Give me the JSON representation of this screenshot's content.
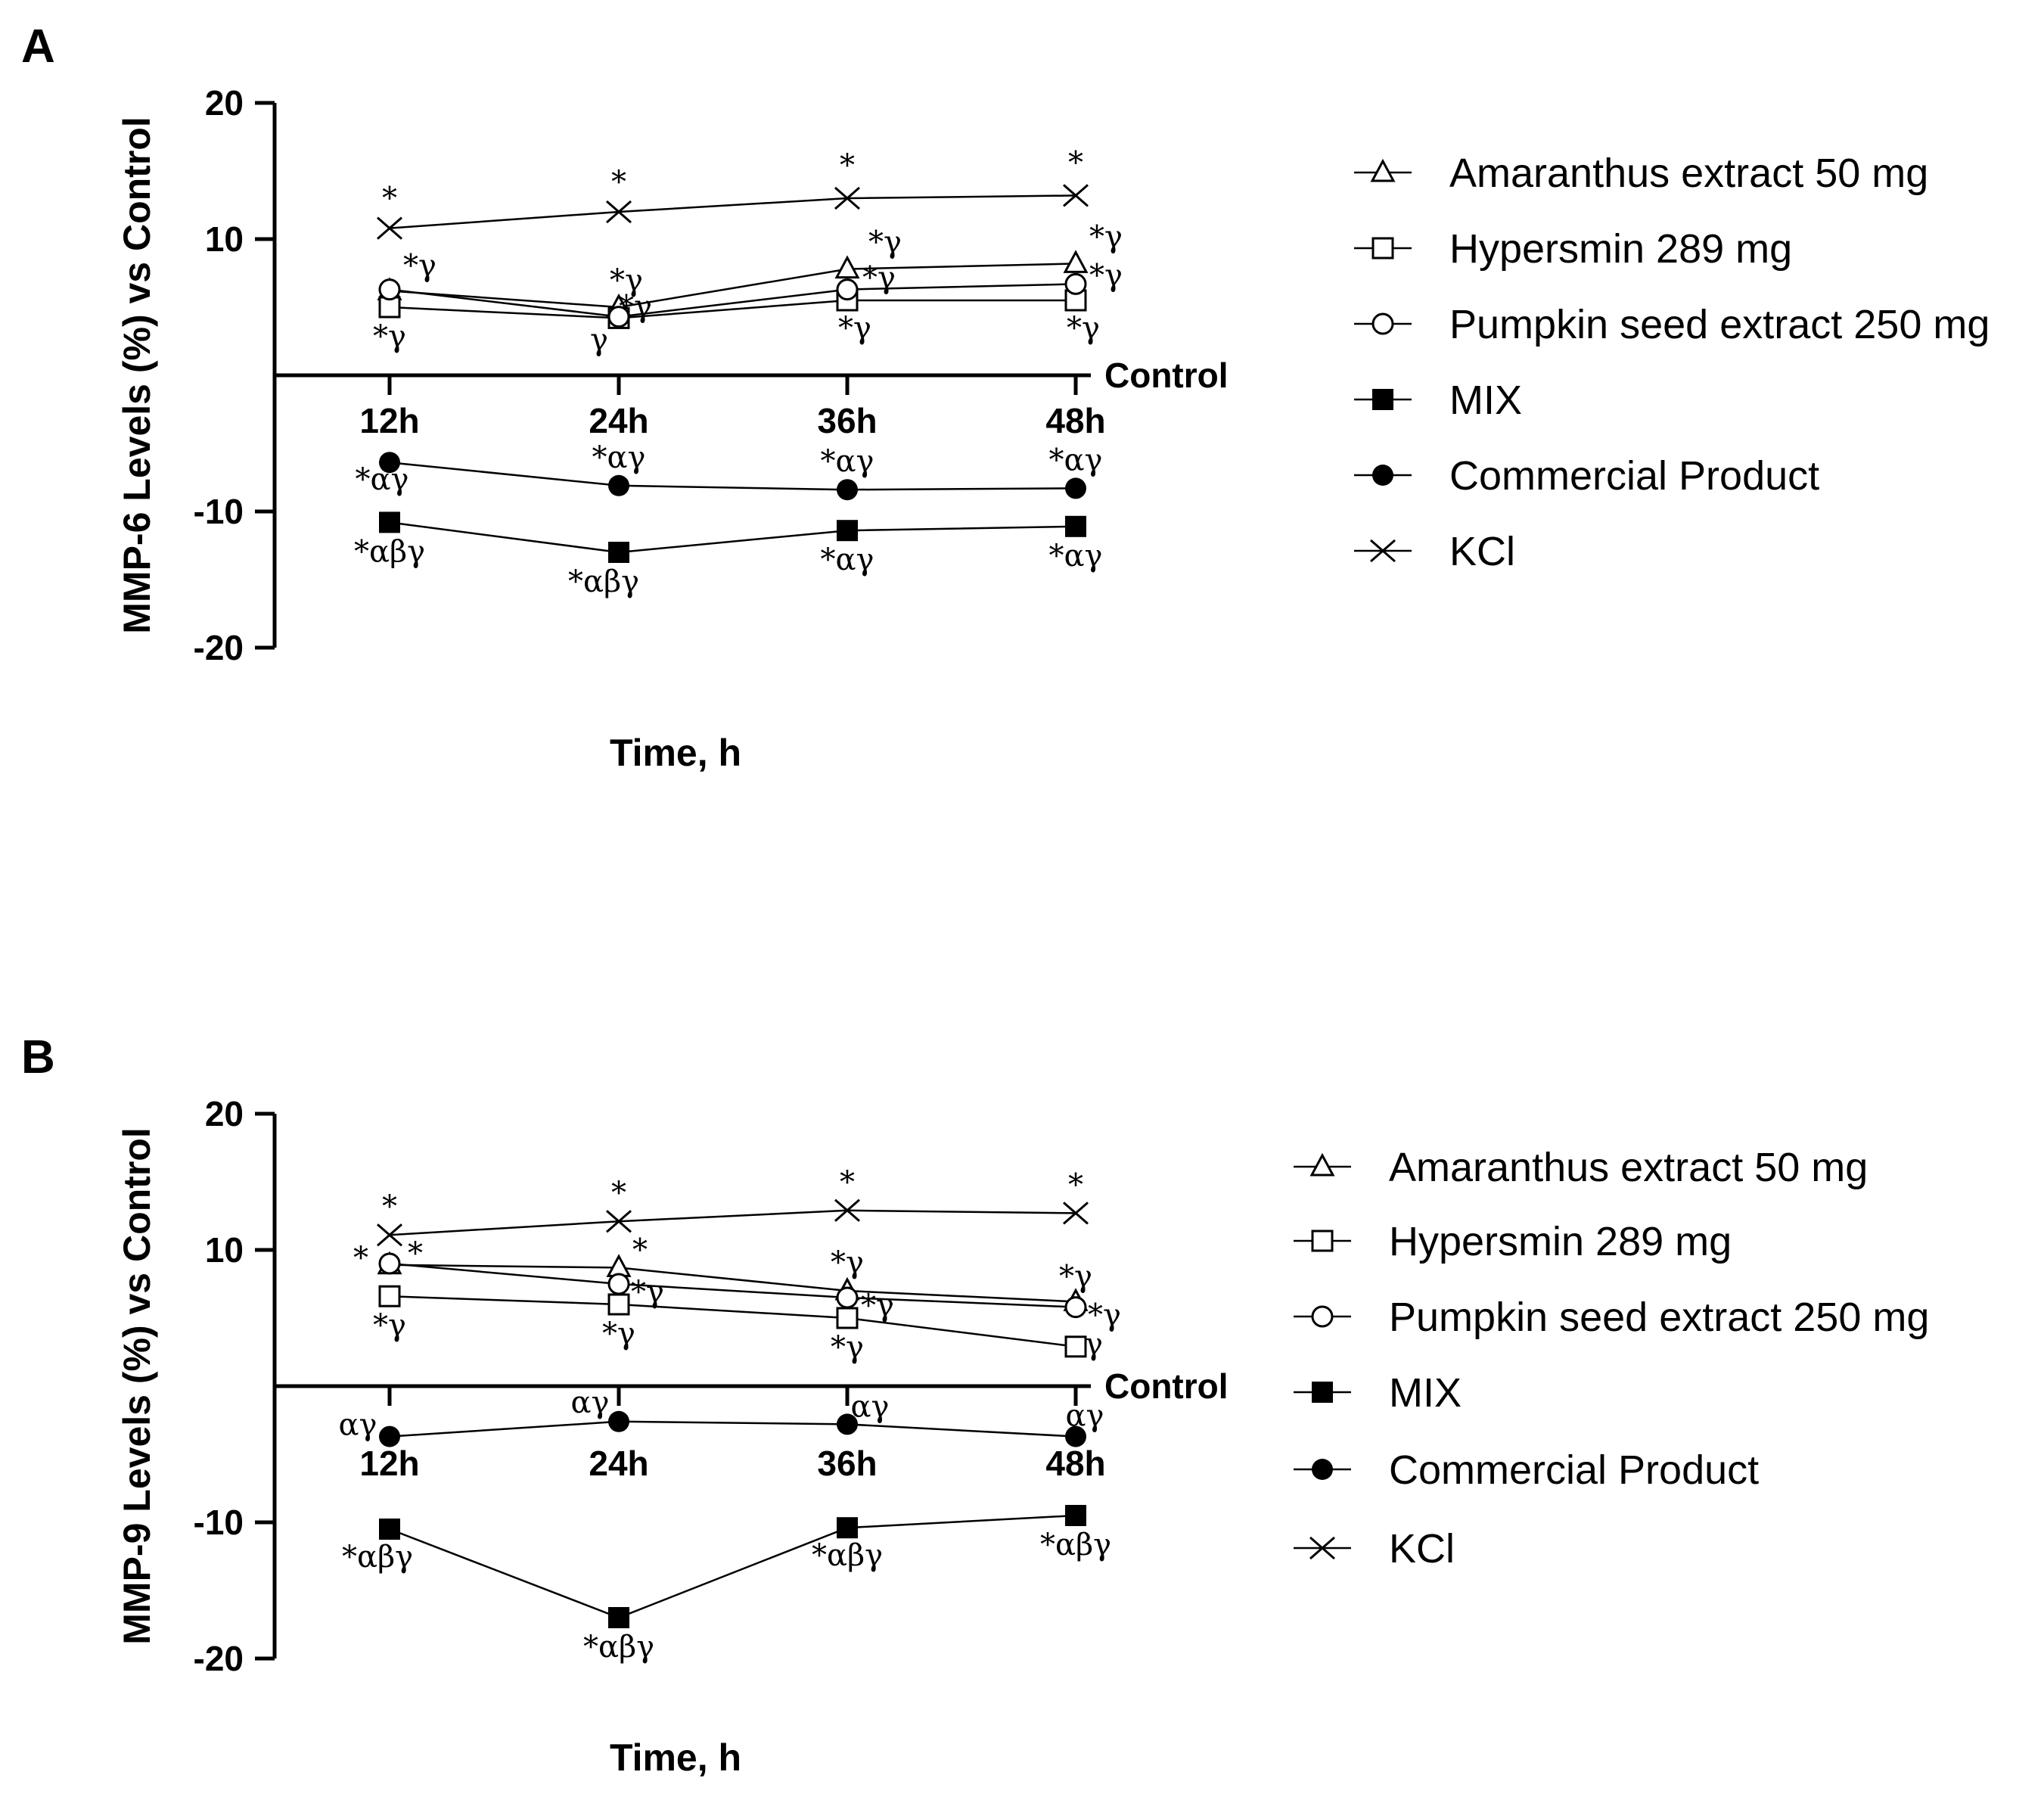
{
  "chart_data": [
    {
      "panel": "A",
      "type": "line",
      "ylabel": "MMP-6 Levels (%) vs Control",
      "xlabel": "Time, h",
      "baseline_label": "Control",
      "categories": [
        "12h",
        "24h",
        "36h",
        "48h"
      ],
      "ylim": [
        -20,
        20
      ],
      "yticks": [
        20,
        10,
        -10,
        -20
      ],
      "series": [
        {
          "name": "Amaranthus extract 50 mg",
          "marker": "triangle-open",
          "values": [
            6.2,
            5.0,
            7.8,
            8.2
          ],
          "labels": [
            "",
            "*γ",
            "*γ",
            "*γ"
          ]
        },
        {
          "name": "Hypersmin 289 mg",
          "marker": "square-open",
          "values": [
            5.0,
            4.2,
            5.5,
            5.5
          ],
          "labels": [
            "*γ",
            "γ",
            "*γ",
            "*γ"
          ]
        },
        {
          "name": "Pumpkin seed extract 250 mg",
          "marker": "circle-open",
          "values": [
            6.3,
            4.3,
            6.3,
            6.7
          ],
          "labels": [
            "*γ",
            "*γ",
            "*γ",
            "*γ"
          ]
        },
        {
          "name": "MIX",
          "marker": "square-filled",
          "values": [
            -10.8,
            -13.0,
            -11.4,
            -11.1
          ],
          "labels": [
            "*αβγ",
            "*αβγ",
            "*αγ",
            "*αγ"
          ]
        },
        {
          "name": "Commercial Product",
          "marker": "circle-filled",
          "values": [
            -6.4,
            -8.1,
            -8.4,
            -8.3
          ],
          "labels": [
            "*αγ",
            "*αγ",
            "*αγ",
            "*αγ"
          ]
        },
        {
          "name": "KCl",
          "marker": "x",
          "values": [
            10.8,
            12.0,
            13.0,
            13.2
          ],
          "labels": [
            "*",
            "*",
            "*",
            "*"
          ]
        }
      ]
    },
    {
      "panel": "B",
      "type": "line",
      "ylabel": "MMP-9 Levels (%) vs Control",
      "xlabel": "Time, h",
      "baseline_label": "Control",
      "categories": [
        "12h",
        "24h",
        "36h",
        "48h"
      ],
      "ylim": [
        -20,
        20
      ],
      "yticks": [
        20,
        10,
        -10,
        -20
      ],
      "series": [
        {
          "name": "Amaranthus extract 50 mg",
          "marker": "triangle-open",
          "values": [
            8.9,
            8.7,
            7.0,
            6.2
          ],
          "labels": [
            "*",
            "*",
            "*γ",
            "*γ"
          ]
        },
        {
          "name": "Hypersmin 289 mg",
          "marker": "square-open",
          "values": [
            6.6,
            6.0,
            5.0,
            2.9
          ],
          "labels": [
            "*γ",
            "*γ",
            "*γ",
            "γ"
          ]
        },
        {
          "name": "Pumpkin seed extract 250 mg",
          "marker": "circle-open",
          "values": [
            9.0,
            7.5,
            6.5,
            5.8
          ],
          "labels": [
            "*",
            "*γ",
            "*γ",
            "*γ"
          ]
        },
        {
          "name": "MIX",
          "marker": "square-filled",
          "values": [
            -10.5,
            -17.0,
            -10.4,
            -9.5
          ],
          "labels": [
            "*αβγ",
            "*αβγ",
            "*αβγ",
            "*αβγ"
          ]
        },
        {
          "name": "Commercial Product",
          "marker": "circle-filled",
          "values": [
            -3.7,
            -2.6,
            -2.8,
            -3.7
          ],
          "labels": [
            "αγ",
            "αγ",
            "αγ",
            "αγ"
          ]
        },
        {
          "name": "KCl",
          "marker": "x",
          "values": [
            11.1,
            12.1,
            12.9,
            12.7
          ],
          "labels": [
            "*",
            "*",
            "*",
            "*"
          ]
        }
      ]
    }
  ]
}
